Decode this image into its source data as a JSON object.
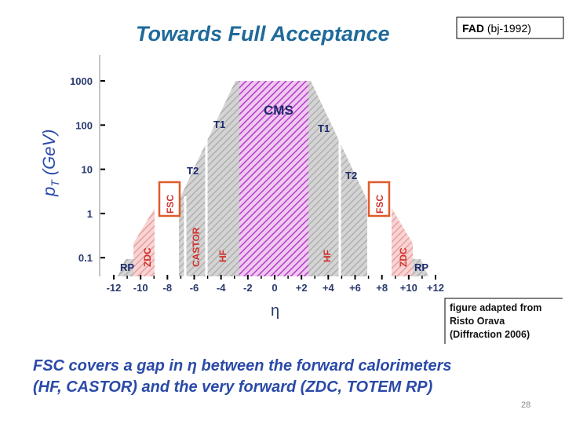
{
  "title": "Towards Full Acceptance",
  "badge": {
    "bold": "FAD",
    "rest": "(bj-1992)"
  },
  "figure": {
    "y_label": {
      "base": "p",
      "sub": "T",
      "unit": "(GeV)"
    },
    "yticks": [
      "1000",
      "100",
      "10",
      "1",
      "0.1"
    ],
    "xticks": [
      "-12",
      "-10",
      "-8",
      "-6",
      "-4",
      "-2",
      "0",
      "+2",
      "+4",
      "+6",
      "+8",
      "+10",
      "+12"
    ],
    "x_label": "η",
    "labels": {
      "cms": "CMS",
      "t1_left": "T1",
      "t1_right": "T1",
      "t2_left": "T2",
      "t2_right": "T2",
      "fsc_left": "FSC",
      "fsc_right": "FSC",
      "castor": "CASTOR",
      "hf_left": "HF",
      "hf_right": "HF",
      "zdc_left": "ZDC",
      "zdc_right": "ZDC",
      "rp_left": "RP",
      "rp_right": "RP"
    }
  },
  "credit": [
    "figure adapted from",
    "Risto Orava",
    "(Diffraction 2006)"
  ],
  "body": [
    "FSC covers a gap in η between the forward calorimeters",
    "(HF, CASTOR) and the very forward (ZDC, TOTEM RP)"
  ],
  "page_number": "28"
}
